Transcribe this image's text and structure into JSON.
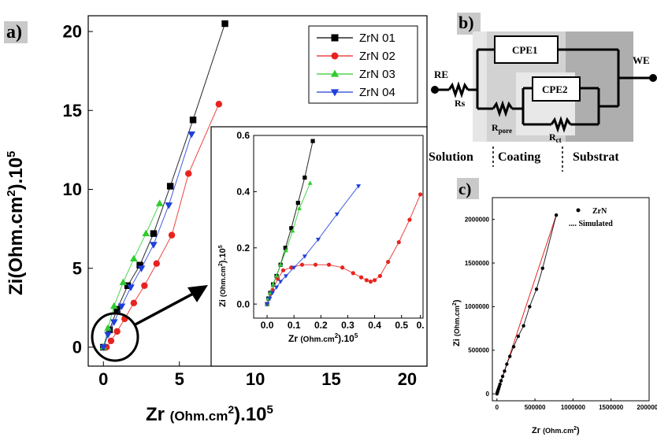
{
  "panel_a": {
    "label": "a)",
    "chart_data": {
      "type": "scatter",
      "xlabel": "Zr (Ohm.cm²).10⁵",
      "ylabel": "Zi(Ohm.cm²).10⁵",
      "xlim": [
        -1,
        21.3
      ],
      "ylim": [
        -1.2,
        21
      ],
      "x_ticks": [
        0,
        5,
        10,
        15,
        20
      ],
      "y_ticks": [
        0,
        5,
        10,
        15,
        20
      ],
      "legend_position": "top-right",
      "series": [
        {
          "name": "ZrN 01",
          "color": "#000000",
          "marker": "square",
          "x": [
            0.0,
            0.4,
            0.9,
            1.6,
            2.4,
            3.3,
            4.4,
            5.9,
            8.0
          ],
          "y": [
            0.0,
            1.1,
            2.4,
            3.9,
            5.2,
            7.2,
            10.2,
            14.4,
            20.5
          ]
        },
        {
          "name": "ZrN 02",
          "color": "#e8231f",
          "marker": "circle",
          "x": [
            0.2,
            0.5,
            0.9,
            1.4,
            2.0,
            2.7,
            3.5,
            4.5,
            5.6,
            7.6
          ],
          "y": [
            0.0,
            0.4,
            1.0,
            1.8,
            2.8,
            3.9,
            5.3,
            7.1,
            11.0,
            15.4
          ]
        },
        {
          "name": "ZrN 03",
          "color": "#2fcc2f",
          "marker": "triangle-up",
          "x": [
            0.0,
            0.3,
            0.7,
            1.3,
            2.0,
            2.8,
            3.7
          ],
          "y": [
            0.0,
            1.2,
            2.6,
            4.1,
            5.6,
            7.2,
            9.1
          ]
        },
        {
          "name": "ZrN 04",
          "color": "#1f3fdb",
          "marker": "triangle-down",
          "x": [
            0.0,
            0.3,
            0.7,
            1.2,
            1.8,
            2.5,
            3.3,
            4.3,
            5.8
          ],
          "y": [
            0.0,
            0.8,
            1.6,
            2.6,
            3.8,
            5.0,
            6.5,
            9.0,
            13.5
          ]
        }
      ]
    }
  },
  "inset": {
    "chart_data": {
      "type": "scatter",
      "xlabel": "Zr (Ohm.cm²).10⁵",
      "ylabel": "Zi (Ohm.cm²).10⁵",
      "xlim": [
        -0.05,
        0.58
      ],
      "ylim": [
        -0.05,
        0.6
      ],
      "x_ticks": [
        "0.0",
        "0.1",
        "0.2",
        "0.3",
        "0.4",
        "0.5",
        "0."
      ],
      "y_ticks": [
        "0.0",
        "0.2",
        "0.4",
        "0.6"
      ],
      "series": [
        {
          "name": "ZrN 01",
          "color": "#000000",
          "marker": "square",
          "x": [
            0.0,
            0.005,
            0.012,
            0.022,
            0.035,
            0.05,
            0.068,
            0.09,
            0.115,
            0.14,
            0.17
          ],
          "y": [
            0.0,
            0.02,
            0.04,
            0.07,
            0.1,
            0.14,
            0.2,
            0.27,
            0.36,
            0.45,
            0.58
          ]
        },
        {
          "name": "ZrN 02",
          "color": "#e8231f",
          "marker": "circle",
          "x": [
            0.0,
            0.02,
            0.04,
            0.06,
            0.09,
            0.13,
            0.18,
            0.23,
            0.28,
            0.32,
            0.35,
            0.37,
            0.385,
            0.4,
            0.42,
            0.45,
            0.49,
            0.53,
            0.57
          ],
          "y": [
            0.0,
            0.05,
            0.09,
            0.12,
            0.13,
            0.14,
            0.14,
            0.14,
            0.13,
            0.11,
            0.095,
            0.085,
            0.08,
            0.085,
            0.1,
            0.15,
            0.22,
            0.3,
            0.39
          ]
        },
        {
          "name": "ZrN 03",
          "color": "#2fcc2f",
          "marker": "triangle-up",
          "x": [
            0.0,
            0.005,
            0.012,
            0.022,
            0.035,
            0.05,
            0.07,
            0.095,
            0.12,
            0.16
          ],
          "y": [
            0.0,
            0.02,
            0.04,
            0.07,
            0.1,
            0.14,
            0.19,
            0.26,
            0.34,
            0.43
          ]
        },
        {
          "name": "ZrN 04",
          "color": "#1f3fdb",
          "marker": "triangle-down",
          "x": [
            0.0,
            0.01,
            0.02,
            0.035,
            0.05,
            0.07,
            0.1,
            0.14,
            0.19,
            0.26,
            0.34
          ],
          "y": [
            0.0,
            0.02,
            0.04,
            0.06,
            0.08,
            0.1,
            0.13,
            0.17,
            0.23,
            0.32,
            0.42
          ]
        }
      ]
    }
  },
  "panel_b": {
    "label": "b)",
    "circuit": {
      "RE": "RE",
      "WE": "WE",
      "Rs": "Rs",
      "CPE1": "CPE1",
      "CPE2": "CPE2",
      "Rpore_main": "R",
      "Rpore_sub": "pore",
      "Rct_main": "R",
      "Rct_sub": "ct",
      "region_solution": "Solution",
      "region_coating": "Coating",
      "region_substrate": "Substrat"
    }
  },
  "panel_c": {
    "label": "c)",
    "chart_data": {
      "type": "scatter",
      "xlabel": "Zr (Ohm.cm²)",
      "ylabel": "Zi (Ohm.cm²)",
      "xlim": [
        -60000,
        2000000
      ],
      "ylim": [
        -80000,
        2250000
      ],
      "x_ticks": [
        "0",
        "500000",
        "1000000",
        "1500000",
        "2000000"
      ],
      "y_ticks": [
        "0",
        "500000",
        "1000000",
        "1500000",
        "2000000"
      ],
      "legend_position": "top-right",
      "legend_points": "ZrN",
      "legend_line": ".... Simulated",
      "series": [
        {
          "name": "ZrN",
          "color": "#000000",
          "marker": "circle",
          "x": [
            0,
            3000,
            6000,
            10000,
            15000,
            22000,
            30000,
            40000,
            55000,
            75000,
            100000,
            130000,
            170000,
            220000,
            280000,
            350000,
            430000,
            520000,
            600000,
            780000
          ],
          "y": [
            0,
            8000,
            17000,
            28000,
            42000,
            60000,
            82000,
            110000,
            150000,
            200000,
            260000,
            340000,
            430000,
            540000,
            660000,
            780000,
            1000000,
            1200000,
            1440000,
            2050000
          ]
        },
        {
          "name": "Simulated",
          "color": "#e8231f",
          "marker": "line",
          "x": [
            0,
            780000
          ],
          "y": [
            0,
            2050000
          ]
        }
      ]
    }
  }
}
